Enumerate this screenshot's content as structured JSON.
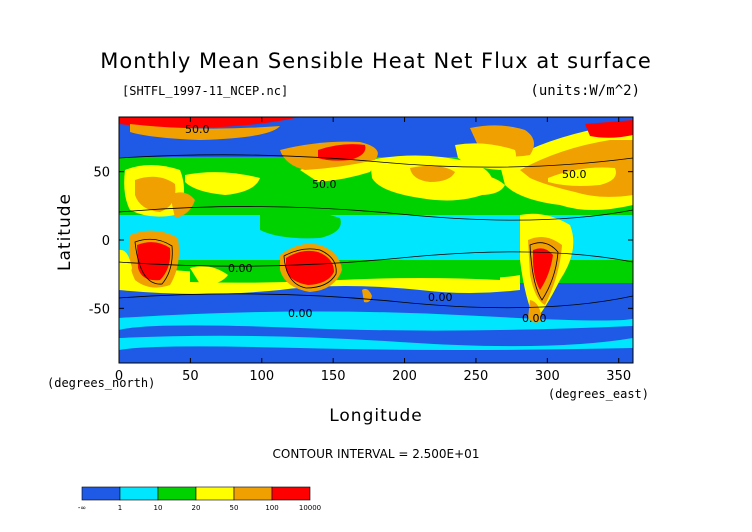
{
  "chart_data": {
    "type": "heatmap",
    "title": "Monthly Mean Sensible Heat Net Flux at surface",
    "subtitle": "[SHTFL_1997-11_NCEP.nc]",
    "units": "(units:W/m^2)",
    "xlabel": "Longitude",
    "ylabel": "Latitude",
    "x_unit_label": "(degrees_east)",
    "y_unit_label": "(degrees_north)",
    "xlim": [
      0,
      360
    ],
    "ylim": [
      -90,
      90
    ],
    "x_ticks": [
      0,
      50,
      100,
      150,
      200,
      250,
      300,
      350
    ],
    "y_ticks": [
      -50,
      0,
      50
    ],
    "contour_interval": "CONTOUR INTERVAL = 2.500E+01",
    "contour_labels": [
      "50.0",
      "50.0",
      "50.0",
      "0.00",
      "0.00",
      "0.00",
      "0.00"
    ],
    "colorbar": {
      "levels": [
        "-∞",
        "1",
        "10",
        "20",
        "50",
        "100",
        "10000"
      ],
      "colors": [
        "#1e5ae6",
        "#00e6ff",
        "#00d200",
        "#ffff00",
        "#f0a000",
        "#ff0000"
      ]
    },
    "grid": false
  }
}
